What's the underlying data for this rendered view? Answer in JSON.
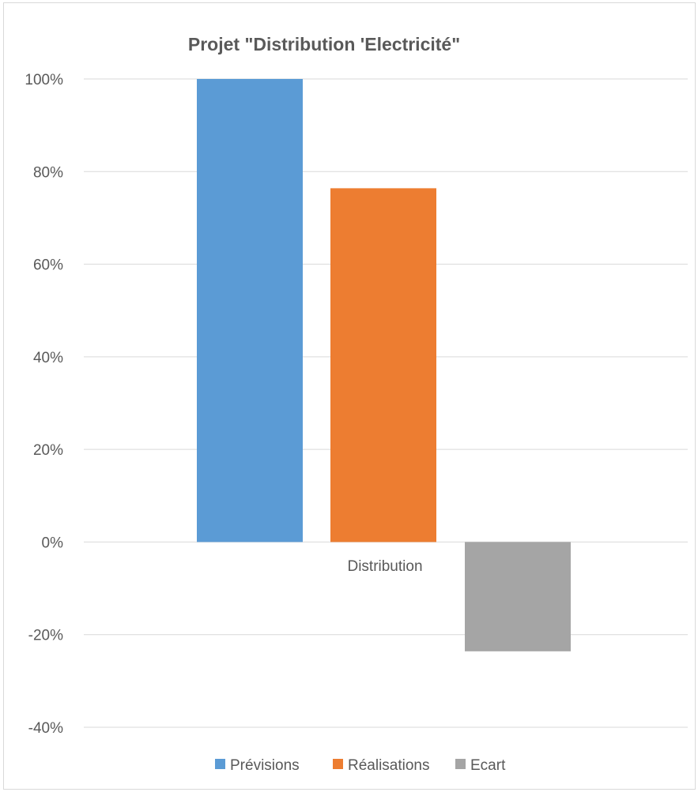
{
  "chart_data": {
    "type": "bar",
    "title": "Projet \"Distribution 'Electricité\"",
    "xlabel": "",
    "ylabel": "",
    "categories": [
      "Distribution"
    ],
    "series": [
      {
        "name": "Prévisions",
        "values": [
          1.0
        ],
        "color": "#5b9bd5"
      },
      {
        "name": "Réalisations",
        "values": [
          0.764
        ],
        "color": "#ed7d31"
      },
      {
        "name": "Ecart",
        "values": [
          -0.236
        ],
        "color": "#a5a5a5"
      }
    ],
    "ylim": [
      -0.4,
      1.0
    ],
    "yticks": [
      1.0,
      0.8,
      0.6,
      0.4,
      0.2,
      0.0,
      -0.2,
      -0.4
    ],
    "ytick_labels": [
      "100%",
      "80%",
      "60%",
      "40%",
      "20%",
      "0%",
      "-20%",
      "-40%"
    ],
    "grid": true,
    "legend_position": "bottom",
    "gridline_color": "#d9d9d9",
    "text_color": "#595959"
  }
}
